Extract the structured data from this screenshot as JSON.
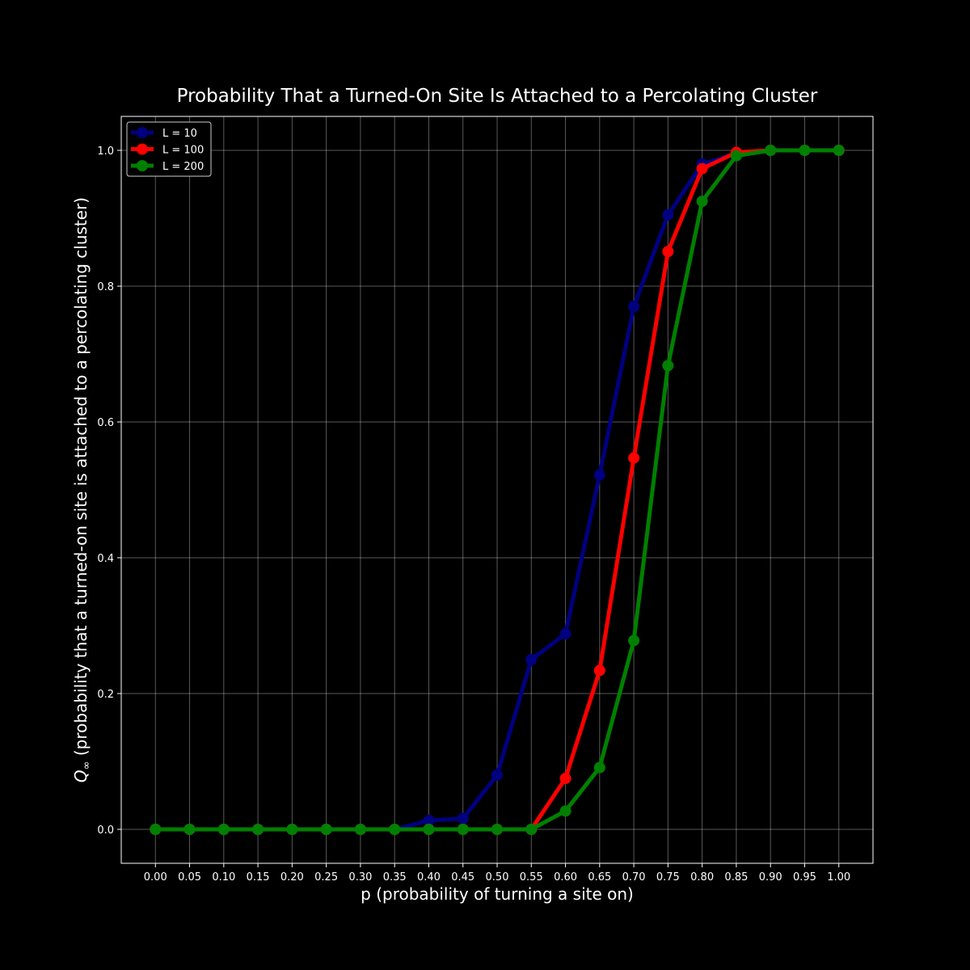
{
  "chart_data": {
    "type": "line",
    "title": "Probability That a Turned-On Site Is Attached to a Percolating Cluster",
    "xlabel": "p (probability of turning a site on)",
    "ylabel_symbol": "Q",
    "ylabel_subscript": "∞",
    "ylabel_text": " (probability that a turned-on site is attached to a percolating cluster)",
    "x": [
      0.0,
      0.05,
      0.1,
      0.15,
      0.2,
      0.25,
      0.3,
      0.35,
      0.4,
      0.45,
      0.5,
      0.55,
      0.6,
      0.65,
      0.7,
      0.75,
      0.8,
      0.85,
      0.9,
      0.95,
      1.0
    ],
    "x_tick_labels": [
      "0.00",
      "0.05",
      "0.10",
      "0.15",
      "0.20",
      "0.25",
      "0.30",
      "0.35",
      "0.40",
      "0.45",
      "0.50",
      "0.55",
      "0.60",
      "0.65",
      "0.70",
      "0.75",
      "0.80",
      "0.85",
      "0.90",
      "0.95",
      "1.00"
    ],
    "y_ticks": [
      0.0,
      0.2,
      0.4,
      0.6,
      0.8,
      1.0
    ],
    "y_tick_labels": [
      "0.0",
      "0.2",
      "0.4",
      "0.6",
      "0.8",
      "1.0"
    ],
    "xlim": [
      -0.05,
      1.05
    ],
    "ylim": [
      -0.05,
      1.05
    ],
    "grid": true,
    "legend_position": "top-left",
    "background": "#000000",
    "foreground": "#ffffff",
    "series": [
      {
        "name": "L = 10",
        "color": "#000080",
        "values": [
          0,
          0,
          0,
          0,
          0,
          0,
          0,
          0,
          0.013,
          0.016,
          0.08,
          0.25,
          0.288,
          0.522,
          0.77,
          0.905,
          0.98,
          0.995,
          1.0,
          1.0,
          1.0
        ]
      },
      {
        "name": "L = 100",
        "color": "#ff0000",
        "values": [
          0,
          0,
          0,
          0,
          0,
          0,
          0,
          0,
          0,
          0,
          0,
          0,
          0.075,
          0.234,
          0.547,
          0.851,
          0.973,
          0.997,
          1.0,
          1.0,
          1.0
        ]
      },
      {
        "name": "L = 200",
        "color": "#008000",
        "values": [
          0,
          0,
          0,
          0,
          0,
          0,
          0,
          0,
          0,
          0,
          0,
          0,
          0.027,
          0.091,
          0.278,
          0.683,
          0.925,
          0.992,
          1.0,
          1.0,
          1.0
        ]
      }
    ]
  }
}
